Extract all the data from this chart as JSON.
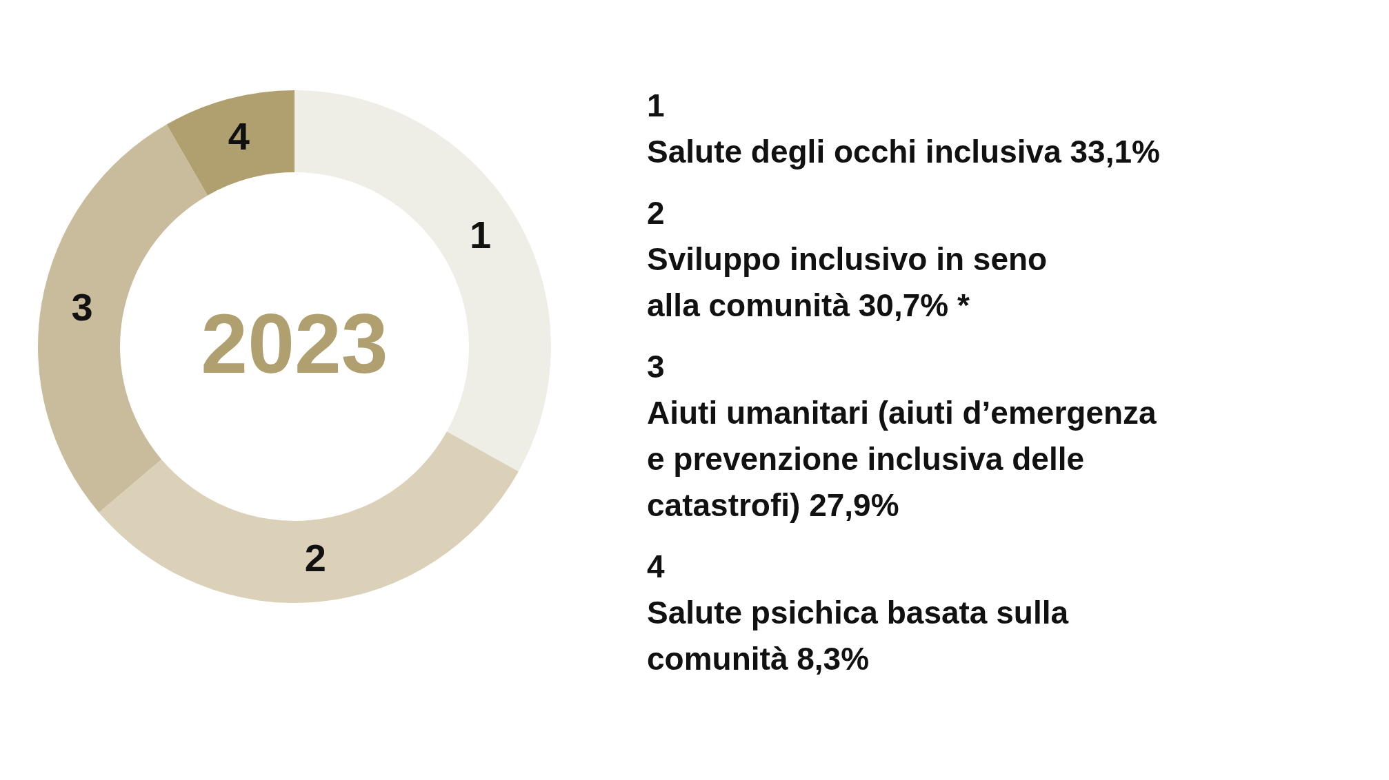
{
  "chart_data": {
    "type": "donut",
    "title": "2023",
    "categories": [
      "1",
      "2",
      "3",
      "4"
    ],
    "values": [
      33.1,
      30.7,
      27.9,
      8.3
    ],
    "colors": [
      "#eeede6",
      "#dbd0b8",
      "#c8bc9c",
      "#b0a070"
    ],
    "annotations": [
      "Salute degli occhi inclusiva 33,1%",
      "Sviluppo inclusivo in seno\nalla comunità 30,7% *",
      "Aiuti umanitari (aiuti d’emergenza\ne prevenzione inclusiva delle\ncatastrofi) 27,9%",
      "Salute psichica basata sulla\ncomunità 8,3%"
    ]
  }
}
